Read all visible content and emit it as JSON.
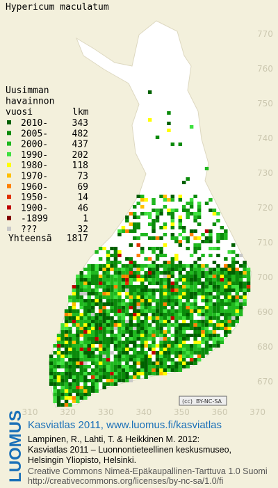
{
  "title": "Hypericum maculatum",
  "legend": {
    "heading": [
      "Uusimman",
      "havainnon",
      "vuosi"
    ],
    "count_heading": "lkm",
    "entries": [
      {
        "label": "2010-",
        "count": 343,
        "color": "#006000"
      },
      {
        "label": "2005-",
        "count": 482,
        "color": "#0a8a0a"
      },
      {
        "label": "2000-",
        "count": 437,
        "color": "#1fb81f"
      },
      {
        "label": "1990-",
        "count": 202,
        "color": "#3ee03e"
      },
      {
        "label": "1980-",
        "count": 118,
        "color": "#ffff00"
      },
      {
        "label": "1970-",
        "count": 73,
        "color": "#ffc000"
      },
      {
        "label": "1960-",
        "count": 69,
        "color": "#ff8000"
      },
      {
        "label": "1950-",
        "count": 14,
        "color": "#e03000"
      },
      {
        "label": "1900-",
        "count": 46,
        "color": "#c00000"
      },
      {
        "label": "-1899",
        "count": 1,
        "color": "#800000"
      },
      {
        "label": "???",
        "count": 32,
        "color": "#c8c8c8"
      }
    ],
    "total_label": "Yhteensä",
    "total": 1817
  },
  "x_ticks": [
    310,
    320,
    330,
    340,
    350,
    360,
    370
  ],
  "y_ticks": [
    770,
    760,
    750,
    740,
    730,
    720,
    710,
    700,
    690,
    680,
    670
  ],
  "license_badge": "BY-NC-SA",
  "logo": "LUOMUS",
  "footer": {
    "link": "Kasviatlas 2011, www.luomus.fi/kasviatlas",
    "citation": [
      "Lampinen, R., Lahti, T. & Heikkinen M. 2012:",
      "Kasviatlas 2011 – Luonnontieteellinen keskusmuseo,",
      "Helsingin Yliopisto, Helsinki."
    ],
    "license": [
      "Creative Commons Nimeä-Epäkaupallinen-Tarttuva 1.0 Suomi",
      "http://creativecommons.org/licenses/by-nc-sa/1.0/fi"
    ]
  }
}
